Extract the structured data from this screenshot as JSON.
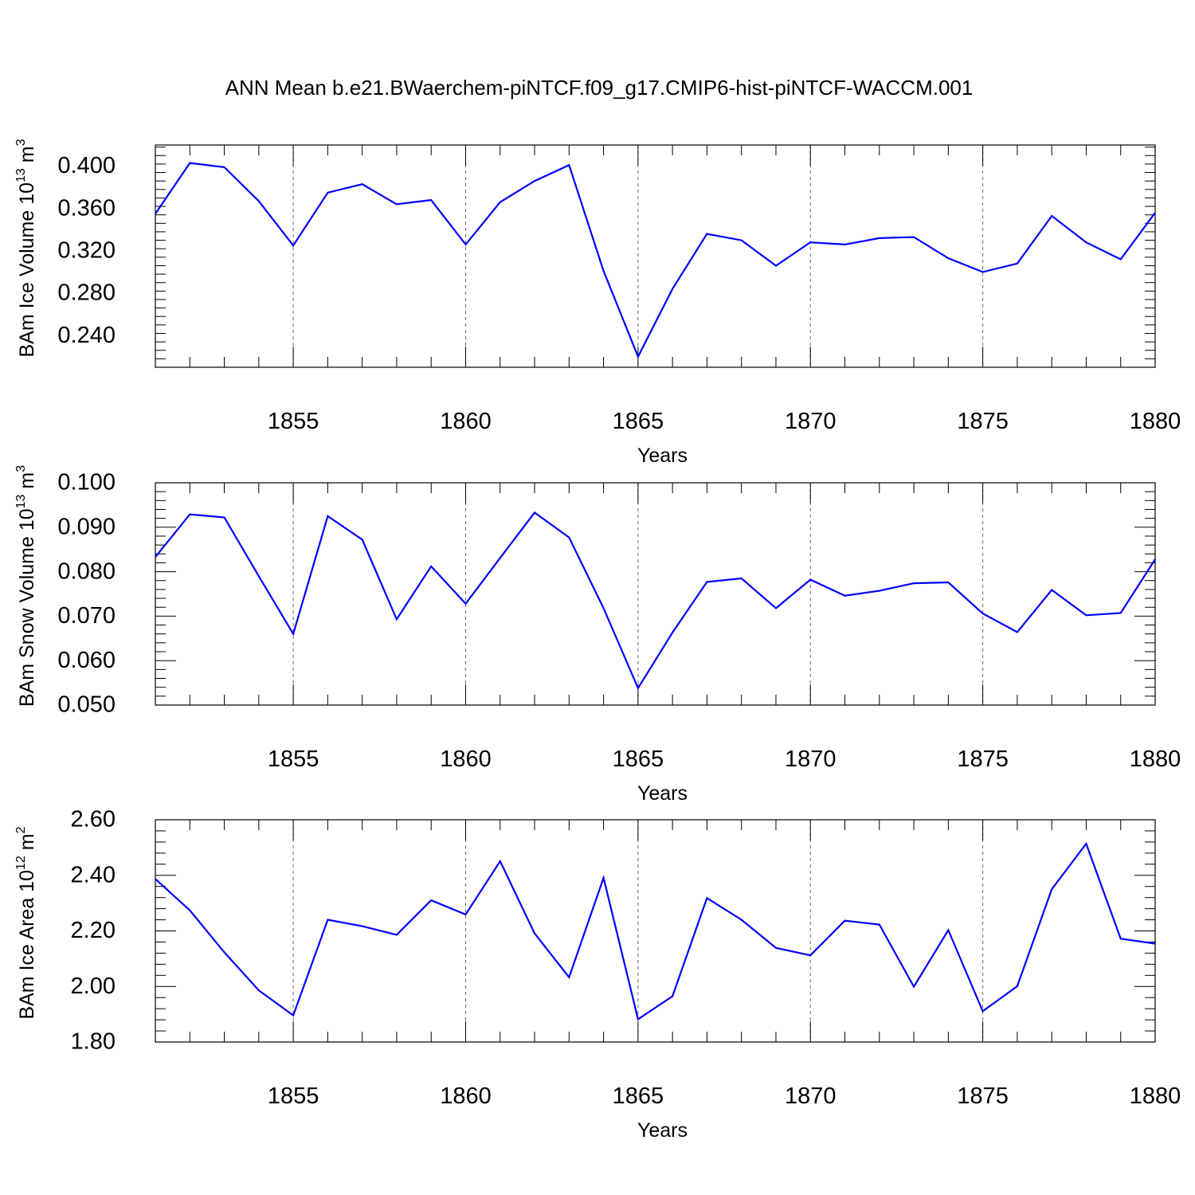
{
  "figure": {
    "title": "ANN Mean b.e21.BWaerchem-piNTCF.f09_g17.CMIP6-hist-piNTCF-WACCM.001"
  },
  "colors": {
    "series": "#0000ff",
    "axes": "#000000",
    "grid": "#666666"
  },
  "chart_data": [
    {
      "type": "line",
      "xlabel": "Years",
      "ylabel_main": "BAm Ice Volume 10",
      "ylabel_sup": "13",
      "ylabel_unit": " m",
      "ylabel_unit_sup": "3",
      "xlim": [
        1851,
        1880
      ],
      "ylim": [
        0.21,
        0.42
      ],
      "xticks": [
        1855,
        1860,
        1865,
        1870,
        1875,
        1880
      ],
      "xtick_labels": [
        "1855",
        "1860",
        "1865",
        "1870",
        "1875",
        "1880"
      ],
      "yticks": [
        0.24,
        0.28,
        0.32,
        0.36,
        0.4
      ],
      "ytick_labels": [
        "0.240",
        "0.280",
        "0.320",
        "0.360",
        "0.400"
      ],
      "grid": "vertical dashed at major x ticks",
      "x": [
        1851,
        1852,
        1853,
        1854,
        1855,
        1856,
        1857,
        1858,
        1859,
        1860,
        1861,
        1862,
        1863,
        1864,
        1865,
        1866,
        1867,
        1868,
        1869,
        1870,
        1871,
        1872,
        1873,
        1874,
        1875,
        1876,
        1877,
        1878,
        1879,
        1880
      ],
      "y": [
        0.355,
        0.403,
        0.399,
        0.367,
        0.325,
        0.375,
        0.383,
        0.364,
        0.368,
        0.326,
        0.366,
        0.386,
        0.401,
        0.301,
        0.22,
        0.284,
        0.336,
        0.33,
        0.306,
        0.328,
        0.326,
        0.332,
        0.333,
        0.313,
        0.3,
        0.308,
        0.353,
        0.328,
        0.312,
        0.356
      ]
    },
    {
      "type": "line",
      "xlabel": "Years",
      "ylabel_main": "BAm Snow Volume 10",
      "ylabel_sup": "13",
      "ylabel_unit": " m",
      "ylabel_unit_sup": "3",
      "xlim": [
        1851,
        1880
      ],
      "ylim": [
        0.05,
        0.1
      ],
      "xticks": [
        1855,
        1860,
        1865,
        1870,
        1875,
        1880
      ],
      "xtick_labels": [
        "1855",
        "1860",
        "1865",
        "1870",
        "1875",
        "1880"
      ],
      "yticks": [
        0.05,
        0.06,
        0.07,
        0.08,
        0.09,
        0.1
      ],
      "ytick_labels": [
        "0.050",
        "0.060",
        "0.070",
        "0.080",
        "0.090",
        "0.100"
      ],
      "grid": "vertical dashed at major x ticks",
      "x": [
        1851,
        1852,
        1853,
        1854,
        1855,
        1856,
        1857,
        1858,
        1859,
        1860,
        1861,
        1862,
        1863,
        1864,
        1865,
        1866,
        1867,
        1868,
        1869,
        1870,
        1871,
        1872,
        1873,
        1874,
        1875,
        1876,
        1877,
        1878,
        1879,
        1880
      ],
      "y": [
        0.0833,
        0.0929,
        0.0922,
        0.079,
        0.066,
        0.0925,
        0.0872,
        0.0693,
        0.0812,
        0.0728,
        0.0831,
        0.0933,
        0.0877,
        0.0718,
        0.0538,
        0.0663,
        0.0777,
        0.0785,
        0.0718,
        0.0782,
        0.0746,
        0.0757,
        0.0774,
        0.0776,
        0.0706,
        0.0664,
        0.0759,
        0.0702,
        0.0707,
        0.0828
      ]
    },
    {
      "type": "line",
      "xlabel": "Years",
      "ylabel_main": "BAm Ice Area 10",
      "ylabel_sup": "12",
      "ylabel_unit": " m",
      "ylabel_unit_sup": "2",
      "xlim": [
        1851,
        1880
      ],
      "ylim": [
        1.8,
        2.6
      ],
      "xticks": [
        1855,
        1860,
        1865,
        1870,
        1875,
        1880
      ],
      "xtick_labels": [
        "1855",
        "1860",
        "1865",
        "1870",
        "1875",
        "1880"
      ],
      "yticks": [
        1.8,
        2.0,
        2.2,
        2.4,
        2.6
      ],
      "ytick_labels": [
        "1.80",
        "2.00",
        "2.20",
        "2.40",
        "2.60"
      ],
      "grid": "vertical dashed at major x ticks",
      "x": [
        1851,
        1852,
        1853,
        1854,
        1855,
        1856,
        1857,
        1858,
        1859,
        1860,
        1861,
        1862,
        1863,
        1864,
        1865,
        1866,
        1867,
        1868,
        1869,
        1870,
        1871,
        1872,
        1873,
        1874,
        1875,
        1876,
        1877,
        1878,
        1879,
        1880
      ],
      "y": [
        2.387,
        2.274,
        2.123,
        1.986,
        1.896,
        2.24,
        2.217,
        2.186,
        2.31,
        2.259,
        2.451,
        2.191,
        2.033,
        2.391,
        1.882,
        1.965,
        2.318,
        2.24,
        2.139,
        2.112,
        2.237,
        2.223,
        1.999,
        2.203,
        1.911,
        2.001,
        2.35,
        2.514,
        2.172,
        2.154
      ]
    }
  ]
}
